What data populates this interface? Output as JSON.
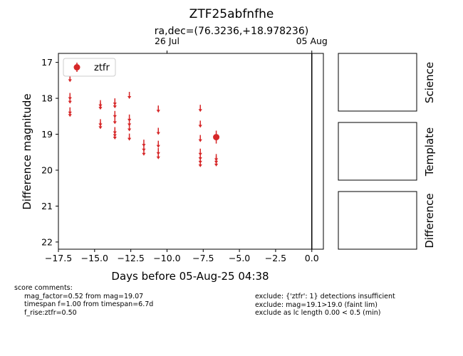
{
  "chart_data": {
    "type": "scatter",
    "title": "ZTF25abfnfhe",
    "subtitle": "ra,dec=(76.3236,+18.978236)",
    "xlabel": "Days before 05-Aug-25 04:38",
    "ylabel": "Difference magnitude",
    "xlim": [
      -17.5,
      0.8
    ],
    "ylim": [
      22.2,
      16.75
    ],
    "y_inverted": true,
    "xticks": [
      -17.5,
      -15.0,
      -12.5,
      -10.0,
      -7.5,
      -5.0,
      -2.5,
      0.0
    ],
    "xtick_labels": [
      "−17.5",
      "−15.0",
      "−12.5",
      "−10.0",
      "−7.5",
      "−5.0",
      "−2.5",
      "0.0"
    ],
    "yticks": [
      17,
      18,
      19,
      20,
      21,
      22
    ],
    "ytick_labels": [
      "17",
      "18",
      "19",
      "20",
      "21",
      "22"
    ],
    "top_axis": {
      "ticks": [
        -10.0,
        0.0
      ],
      "labels": [
        "26 Jul",
        "05 Aug"
      ]
    },
    "vline_x": 0.0,
    "legend": {
      "placement": "top-left",
      "entries": [
        "ztfr"
      ]
    },
    "series": [
      {
        "name": "ztfr",
        "color": "#d62728",
        "detections": [
          {
            "x": -6.6,
            "y": 19.08,
            "err": 0.18
          }
        ],
        "upper_limits": [
          {
            "x": -16.7,
            "y": 17.45
          },
          {
            "x": -16.7,
            "y": 17.95
          },
          {
            "x": -16.7,
            "y": 18.05
          },
          {
            "x": -16.7,
            "y": 18.35
          },
          {
            "x": -16.7,
            "y": 18.42
          },
          {
            "x": -14.6,
            "y": 18.15
          },
          {
            "x": -14.6,
            "y": 18.22
          },
          {
            "x": -14.6,
            "y": 18.68
          },
          {
            "x": -14.6,
            "y": 18.76
          },
          {
            "x": -13.6,
            "y": 18.1
          },
          {
            "x": -13.6,
            "y": 18.18
          },
          {
            "x": -13.6,
            "y": 18.45
          },
          {
            "x": -13.6,
            "y": 18.62
          },
          {
            "x": -13.6,
            "y": 18.9
          },
          {
            "x": -13.6,
            "y": 18.98
          },
          {
            "x": -13.6,
            "y": 19.05
          },
          {
            "x": -12.6,
            "y": 17.92
          },
          {
            "x": -12.6,
            "y": 18.55
          },
          {
            "x": -12.6,
            "y": 18.68
          },
          {
            "x": -12.6,
            "y": 18.82
          },
          {
            "x": -12.6,
            "y": 19.08
          },
          {
            "x": -11.6,
            "y": 19.25
          },
          {
            "x": -11.6,
            "y": 19.38
          },
          {
            "x": -11.6,
            "y": 19.5
          },
          {
            "x": -10.6,
            "y": 18.3
          },
          {
            "x": -10.6,
            "y": 18.92
          },
          {
            "x": -10.6,
            "y": 19.28
          },
          {
            "x": -10.6,
            "y": 19.48
          },
          {
            "x": -10.6,
            "y": 19.6
          },
          {
            "x": -7.7,
            "y": 18.28
          },
          {
            "x": -7.7,
            "y": 18.72
          },
          {
            "x": -7.7,
            "y": 19.12
          },
          {
            "x": -7.7,
            "y": 19.5
          },
          {
            "x": -7.7,
            "y": 19.62
          },
          {
            "x": -7.7,
            "y": 19.72
          },
          {
            "x": -7.7,
            "y": 19.82
          },
          {
            "x": -6.6,
            "y": 19.65
          },
          {
            "x": -6.6,
            "y": 19.72
          },
          {
            "x": -6.6,
            "y": 19.8
          }
        ]
      }
    ]
  },
  "panels": {
    "science": "Science",
    "template": "Template",
    "difference": "Difference"
  },
  "comments": {
    "heading": "score comments:",
    "left": [
      "mag_factor=0.52 from mag=19.07",
      "timespan f=1.00 from timespan=6.7d",
      "f_rise:ztfr=0.50"
    ],
    "right": [
      "exclude: {'ztfr': 1} detections insufficient",
      "exclude: mag=19.1>19.0 (faint lim)",
      "exclude as lc length 0.00 < 0.5 (min)"
    ]
  }
}
